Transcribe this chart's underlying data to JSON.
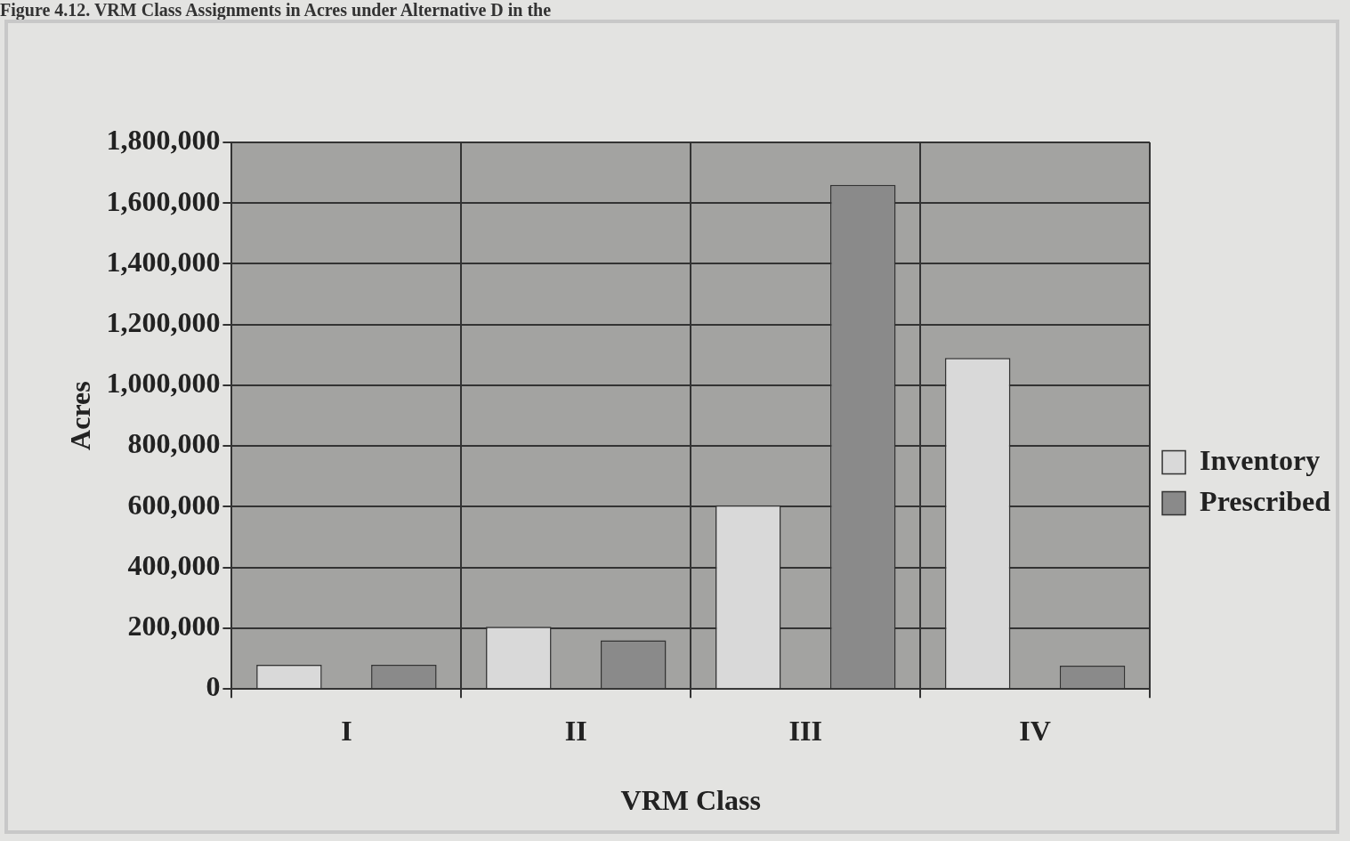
{
  "chart_data": {
    "type": "bar",
    "title": "Figure 4.12. VRM Class Assignments in Acres under Alternative D in the",
    "xlabel": "VRM Class",
    "ylabel": "Acres",
    "categories": [
      "I",
      "II",
      "III",
      "IV"
    ],
    "series": [
      {
        "name": "Inventory",
        "color": "#d9d9d9",
        "values": [
          80000,
          205000,
          605000,
          1090000
        ]
      },
      {
        "name": "Prescribed",
        "color": "#8a8a8a",
        "values": [
          80000,
          160000,
          1660000,
          77000
        ]
      }
    ],
    "ylim": [
      0,
      1800000
    ],
    "yticks": [
      {
        "value": 0,
        "label": "0"
      },
      {
        "value": 200000,
        "label": "200,000"
      },
      {
        "value": 400000,
        "label": "400,000"
      },
      {
        "value": 600000,
        "label": "600,000"
      },
      {
        "value": 800000,
        "label": "800,000"
      },
      {
        "value": 1000000,
        "label": "1,000,000"
      },
      {
        "value": 1200000,
        "label": "1,200,000"
      },
      {
        "value": 1400000,
        "label": "1,400,000"
      },
      {
        "value": 1600000,
        "label": "1,600,000"
      },
      {
        "value": 1800000,
        "label": "1,800,000"
      }
    ],
    "grid": true,
    "legend": "right"
  }
}
